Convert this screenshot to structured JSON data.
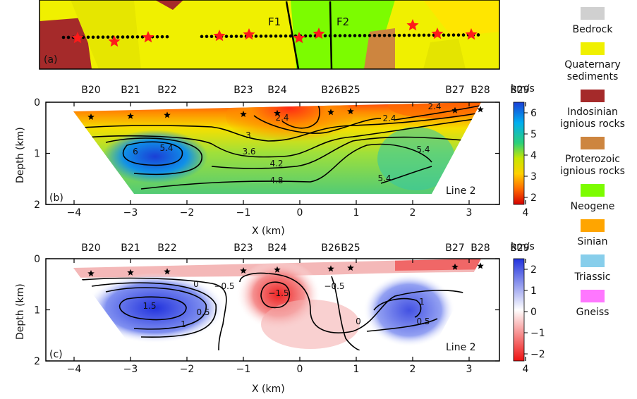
{
  "map_panel": {
    "label": "(a)",
    "faults": [
      "F1",
      "F2"
    ]
  },
  "stations": [
    "B20",
    "B21",
    "B22",
    "B23",
    "B24",
    "B26",
    "B25",
    "B27",
    "B28",
    "B29"
  ],
  "station_x": [
    -3.7,
    -3.0,
    -2.35,
    -1.0,
    -0.4,
    0.55,
    0.9,
    2.75,
    3.2,
    3.9
  ],
  "panel_b": {
    "label": "(b)",
    "line_label": "Line 2",
    "ylabel": "Depth (km)",
    "xlabel": "X (km)",
    "colorbar": {
      "unit": "km/s",
      "ticks": [
        "6",
        "5",
        "4",
        "3",
        "2"
      ]
    },
    "contour_labels": [
      "6",
      "5.4",
      "3",
      "2.4",
      "3.6",
      "4.2",
      "4.8",
      "5.4",
      "2.4",
      "2.4",
      "5.4"
    ]
  },
  "panel_c": {
    "label": "(c)",
    "line_label": "Line 2",
    "ylabel": "Depth (km)",
    "xlabel": "X (km)",
    "colorbar": {
      "unit": "km/s",
      "ticks": [
        "2",
        "1",
        "0",
        "−1",
        "−2"
      ]
    },
    "contour_labels": [
      "0",
      "−0.5",
      "1.5",
      "0.5",
      "1",
      "−1.5",
      "−0.5",
      "0",
      "1",
      "0.5"
    ]
  },
  "x_ticks": [
    "−4",
    "−3",
    "−2",
    "−1",
    "0",
    "1",
    "2",
    "3",
    "4"
  ],
  "y_ticks": [
    "0",
    "1",
    "2"
  ],
  "legend": [
    {
      "lines": [
        "Bedrock"
      ],
      "color": "#d0d0d0"
    },
    {
      "lines": [
        "Quaternary",
        "sediments"
      ],
      "color": "#f0f000"
    },
    {
      "lines": [
        "Indosinian",
        "ignious rocks"
      ],
      "color": "#a52a2a"
    },
    {
      "lines": [
        "Proterozoic",
        "ignious rocks"
      ],
      "color": "#cd853f"
    },
    {
      "lines": [
        "Neogene"
      ],
      "color": "#7cfc00"
    },
    {
      "lines": [
        "Sinian"
      ],
      "color": "#ffa500"
    },
    {
      "lines": [
        "Triassic"
      ],
      "color": "#87ceeb"
    },
    {
      "lines": [
        "Gneiss"
      ],
      "color": "#ff77ff"
    }
  ]
}
